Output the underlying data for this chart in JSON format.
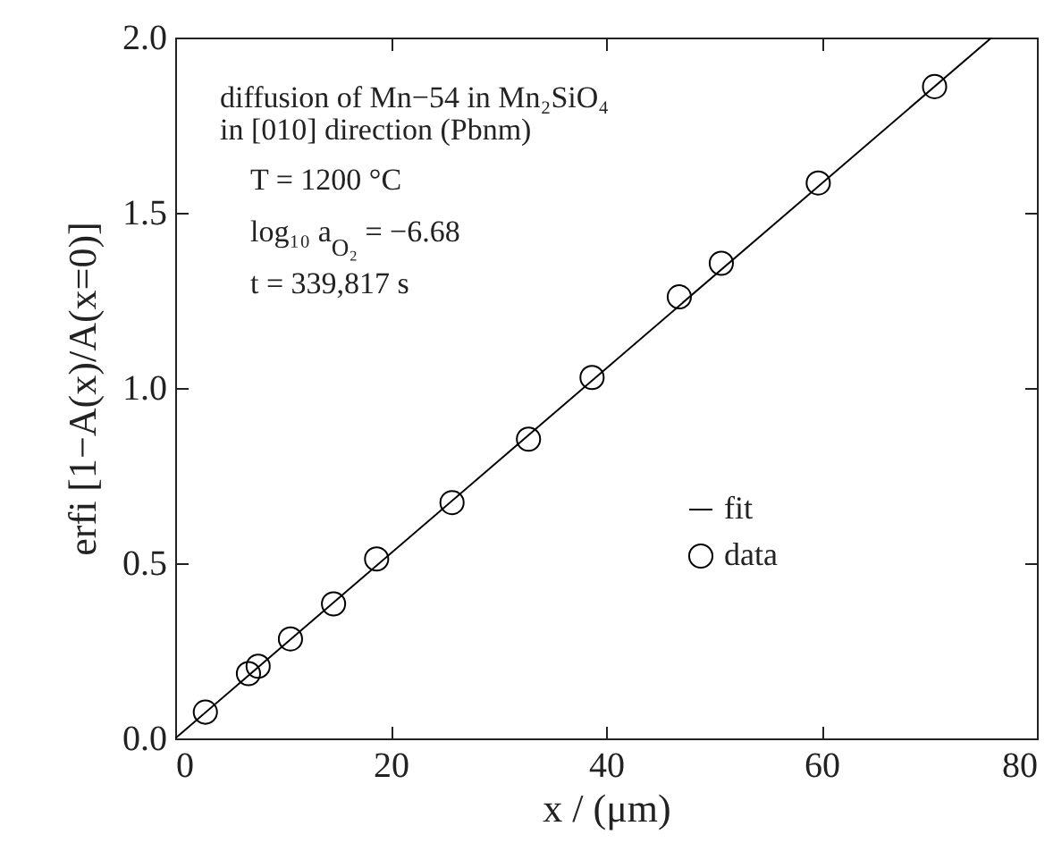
{
  "chart_data": {
    "type": "scatter",
    "xlabel": "x / (μm)",
    "ylabel": "erfi [1−A(x)/A(x=0)]",
    "annotations": [
      "diffusion of Mn−54 in Mn₂SiO₄",
      "in [010] direction (Pbnm)",
      "T = 1200 °C",
      "log₁₀ a$_{O₂}$ = −6.68",
      "t = 339,817 s"
    ],
    "xlim": [
      0,
      80
    ],
    "xticks": [
      0,
      20,
      40,
      60,
      80
    ],
    "ylim": [
      0,
      2
    ],
    "yticks": [
      {
        "value": 0,
        "label": "0.0"
      },
      {
        "value": 0.5,
        "label": "0.5"
      },
      {
        "value": 1,
        "label": "1.0"
      },
      {
        "value": 1.5,
        "label": "1.5"
      },
      {
        "value": 2,
        "label": "2.0"
      }
    ],
    "legend": "bottom right",
    "series": [
      {
        "name": "fit",
        "type": "line",
        "color": "#000000",
        "x": [
          0,
          75.8
        ],
        "values": [
          0,
          2.0
        ]
      },
      {
        "name": "data",
        "marker": "circle",
        "color": "#000000",
        "x": [
          2.8,
          6.8,
          7.7,
          10.7,
          14.7,
          18.7,
          25.7,
          32.8,
          38.7,
          46.8,
          50.7,
          59.7,
          70.5
        ],
        "values": [
          0.075,
          0.185,
          0.206,
          0.284,
          0.384,
          0.512,
          0.673,
          0.854,
          1.03,
          1.26,
          1.356,
          1.585,
          1.86
        ]
      }
    ]
  }
}
